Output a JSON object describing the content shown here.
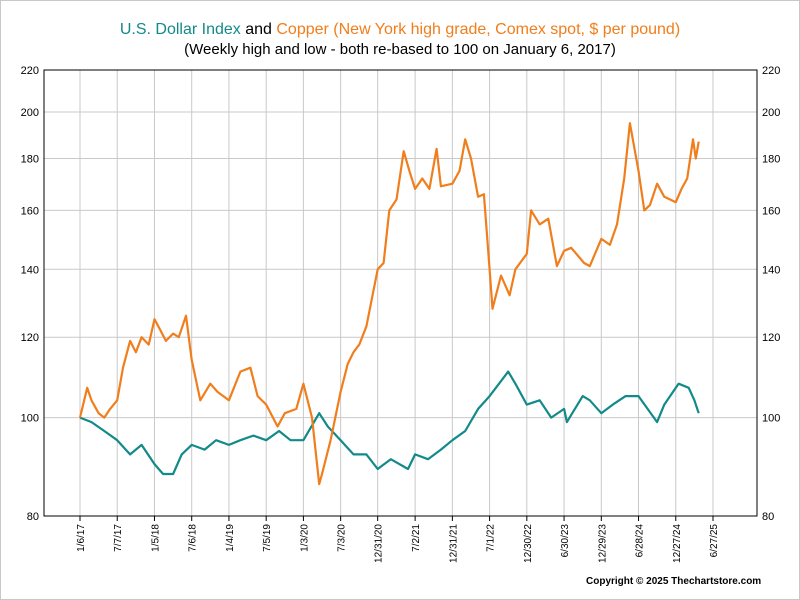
{
  "title": {
    "part1": "U.S. Dollar Index",
    "part2": " and ",
    "part3": "Copper (New York high grade, Comex spot, $ per pound)",
    "color1": "#138a8a",
    "color3": "#f07e1c"
  },
  "subtitle": "(Weekly high and low - both re-based to 100 on January 6, 2017)",
  "copyright": "Copyright © 2025 Thechartstore.com",
  "chart_data": {
    "type": "line",
    "yscale": "log",
    "ylim": [
      80,
      220
    ],
    "yticks": [
      80,
      100,
      120,
      140,
      160,
      180,
      200,
      220
    ],
    "grid": true,
    "xticks": [
      "1/6/17",
      "7/7/17",
      "1/5/18",
      "7/6/18",
      "1/4/19",
      "7/5/19",
      "1/3/20",
      "7/3/20",
      "12/31/20",
      "7/2/21",
      "12/31/21",
      "7/1/22",
      "12/30/22",
      "6/30/23",
      "12/29/23",
      "6/28/24",
      "12/27/24",
      "6/27/25"
    ],
    "xrange": [
      "1/6/17",
      "6/27/25"
    ],
    "series": [
      {
        "name": "U.S. Dollar Index",
        "color": "#138a8a",
        "points": [
          [
            "1/6/17",
            100
          ],
          [
            "3/3/17",
            99
          ],
          [
            "5/5/17",
            97
          ],
          [
            "7/7/17",
            95
          ],
          [
            "9/8/17",
            92
          ],
          [
            "11/3/17",
            94
          ],
          [
            "1/5/18",
            90
          ],
          [
            "2/16/18",
            88
          ],
          [
            "4/6/18",
            88
          ],
          [
            "5/18/18",
            92
          ],
          [
            "7/6/18",
            94
          ],
          [
            "9/7/18",
            93
          ],
          [
            "11/2/18",
            95
          ],
          [
            "1/4/19",
            94
          ],
          [
            "3/1/19",
            95
          ],
          [
            "5/3/19",
            96
          ],
          [
            "7/5/19",
            95
          ],
          [
            "9/6/19",
            97
          ],
          [
            "11/1/19",
            95
          ],
          [
            "1/3/20",
            95
          ],
          [
            "3/20/20",
            101
          ],
          [
            "5/1/20",
            98
          ],
          [
            "7/3/20",
            95
          ],
          [
            "9/4/20",
            92
          ],
          [
            "11/6/20",
            92
          ],
          [
            "12/31/20",
            89
          ],
          [
            "3/5/21",
            91
          ],
          [
            "5/28/21",
            89
          ],
          [
            "7/2/21",
            92
          ],
          [
            "9/3/21",
            91
          ],
          [
            "11/5/21",
            93
          ],
          [
            "12/31/21",
            95
          ],
          [
            "3/4/22",
            97
          ],
          [
            "5/6/22",
            102
          ],
          [
            "7/1/22",
            105
          ],
          [
            "9/30/22",
            111
          ],
          [
            "11/4/22",
            108
          ],
          [
            "12/30/22",
            103
          ],
          [
            "3/3/23",
            104
          ],
          [
            "4/28/23",
            100
          ],
          [
            "6/30/23",
            102
          ],
          [
            "7/14/23",
            99
          ],
          [
            "9/29/23",
            105
          ],
          [
            "11/3/23",
            104
          ],
          [
            "12/29/23",
            101
          ],
          [
            "2/23/24",
            103
          ],
          [
            "4/26/24",
            105
          ],
          [
            "6/28/24",
            105
          ],
          [
            "9/27/24",
            99
          ],
          [
            "11/1/24",
            103
          ],
          [
            "12/27/24",
            107
          ],
          [
            "1/10/25",
            108
          ],
          [
            "2/28/25",
            107
          ],
          [
            "3/28/25",
            104
          ],
          [
            "4/18/25",
            101
          ]
        ]
      },
      {
        "name": "Copper (New York high grade, Comex spot, $ per pound)",
        "color": "#f07e1c",
        "points": [
          [
            "1/6/17",
            100
          ],
          [
            "2/10/17",
            107
          ],
          [
            "3/3/17",
            104
          ],
          [
            "4/7/17",
            101
          ],
          [
            "5/5/17",
            100
          ],
          [
            "6/2/17",
            102
          ],
          [
            "7/7/17",
            104
          ],
          [
            "8/4/17",
            112
          ],
          [
            "9/8/17",
            119
          ],
          [
            "10/6/17",
            116
          ],
          [
            "11/3/17",
            120
          ],
          [
            "12/8/17",
            118
          ],
          [
            "1/5/18",
            125
          ],
          [
            "2/2/18",
            122
          ],
          [
            "3/2/18",
            119
          ],
          [
            "4/6/18",
            121
          ],
          [
            "5/4/18",
            120
          ],
          [
            "6/8/18",
            126
          ],
          [
            "7/6/18",
            114
          ],
          [
            "8/17/18",
            104
          ],
          [
            "10/5/18",
            108
          ],
          [
            "11/9/18",
            106
          ],
          [
            "1/4/19",
            104
          ],
          [
            "3/1/19",
            111
          ],
          [
            "4/19/19",
            112
          ],
          [
            "5/24/19",
            105
          ],
          [
            "7/5/19",
            103
          ],
          [
            "8/30/19",
            98
          ],
          [
            "10/4/19",
            101
          ],
          [
            "11/29/19",
            102
          ],
          [
            "1/3/20",
            108
          ],
          [
            "2/14/20",
            100
          ],
          [
            "3/20/20",
            86
          ],
          [
            "4/3/20",
            88
          ],
          [
            "5/15/20",
            95
          ],
          [
            "7/3/20",
            106
          ],
          [
            "8/7/20",
            113
          ],
          [
            "9/4/20",
            116
          ],
          [
            "10/2/20",
            118
          ],
          [
            "11/6/20",
            123
          ],
          [
            "12/31/20",
            140
          ],
          [
            "1/29/21",
            142
          ],
          [
            "2/26/21",
            160
          ],
          [
            "4/2/21",
            164
          ],
          [
            "5/7/21",
            183
          ],
          [
            "6/4/21",
            175
          ],
          [
            "7/2/21",
            168
          ],
          [
            "8/6/21",
            172
          ],
          [
            "9/10/21",
            168
          ],
          [
            "10/15/21",
            184
          ],
          [
            "11/5/21",
            169
          ],
          [
            "12/31/21",
            170
          ],
          [
            "2/4/22",
            175
          ],
          [
            "3/4/22",
            188
          ],
          [
            "4/1/22",
            180
          ],
          [
            "5/6/22",
            165
          ],
          [
            "6/3/22",
            166
          ],
          [
            "7/1/22",
            140
          ],
          [
            "7/15/22",
            128
          ],
          [
            "8/26/22",
            138
          ],
          [
            "10/7/22",
            132
          ],
          [
            "11/4/22",
            140
          ],
          [
            "12/30/22",
            145
          ],
          [
            "1/20/23",
            160
          ],
          [
            "3/3/23",
            155
          ],
          [
            "4/14/23",
            157
          ],
          [
            "5/26/23",
            141
          ],
          [
            "6/30/23",
            146
          ],
          [
            "8/4/23",
            147
          ],
          [
            "10/6/23",
            142
          ],
          [
            "11/3/23",
            141
          ],
          [
            "12/29/23",
            150
          ],
          [
            "2/9/24",
            148
          ],
          [
            "3/15/24",
            155
          ],
          [
            "4/19/24",
            172
          ],
          [
            "5/17/24",
            195
          ],
          [
            "6/28/24",
            175
          ],
          [
            "7/26/24",
            160
          ],
          [
            "8/23/24",
            162
          ],
          [
            "9/27/24",
            170
          ],
          [
            "11/1/24",
            165
          ],
          [
            "12/27/24",
            163
          ],
          [
            "1/24/25",
            168
          ],
          [
            "2/21/25",
            172
          ],
          [
            "3/21/25",
            188
          ],
          [
            "4/4/25",
            180
          ],
          [
            "4/18/25",
            187
          ]
        ]
      }
    ]
  }
}
